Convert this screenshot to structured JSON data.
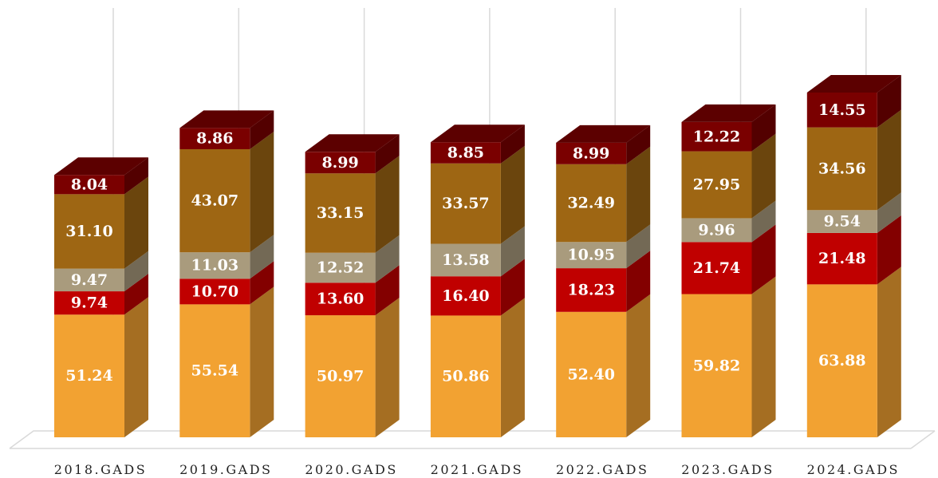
{
  "chart_data": {
    "type": "bar3d_stacked",
    "categories": [
      "2018.GADS",
      "2019.GADS",
      "2020.GADS",
      "2021.GADS",
      "2022.GADS",
      "2023.GADS",
      "2024.GADS"
    ],
    "series": [
      {
        "color": "#f2a232",
        "values": [
          51.24,
          55.54,
          50.97,
          50.86,
          52.4,
          59.82,
          63.88
        ],
        "value_labels": [
          "51.24",
          "55.54",
          "50.97",
          "50.86",
          "52.40",
          "59.82",
          "63.88"
        ]
      },
      {
        "color": "#c00000",
        "values": [
          9.74,
          10.7,
          13.6,
          16.4,
          18.23,
          21.74,
          21.48
        ],
        "value_labels": [
          "9.74",
          "10.70",
          "13.60",
          "16.40",
          "18.23",
          "21.74",
          "21.48"
        ]
      },
      {
        "color": "#a99b7d",
        "values": [
          9.47,
          11.03,
          12.52,
          13.58,
          10.95,
          9.96,
          9.54
        ],
        "value_labels": [
          "9.47",
          "11.03",
          "12.52",
          "13.58",
          "10.95",
          "9.96",
          "9.54"
        ]
      },
      {
        "color": "#9e6613",
        "values": [
          31.1,
          43.07,
          33.15,
          33.57,
          32.49,
          27.95,
          34.56
        ],
        "value_labels": [
          "31.10",
          "43.07",
          "33.15",
          "33.57",
          "32.49",
          "27.95",
          "34.56"
        ]
      },
      {
        "color": "#7a0000",
        "values": [
          8.04,
          8.86,
          8.99,
          8.85,
          8.99,
          12.22,
          14.55
        ],
        "value_labels": [
          "8.04",
          "8.86",
          "8.99",
          "8.85",
          "8.99",
          "12.22",
          "14.55"
        ]
      }
    ]
  }
}
